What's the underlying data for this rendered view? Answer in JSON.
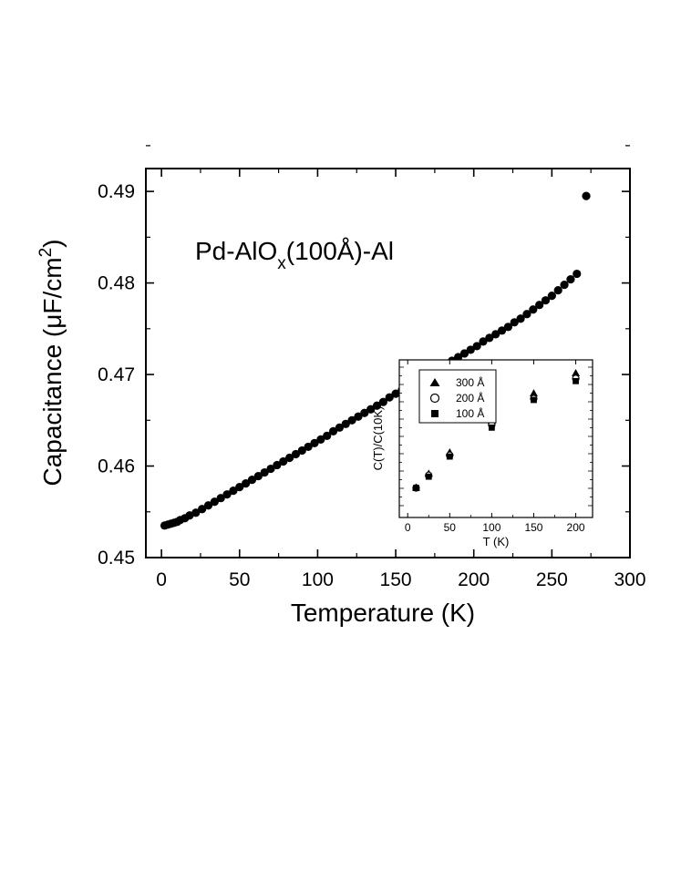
{
  "chart_data": [
    {
      "type": "scatter",
      "annotation": {
        "prefix": "Pd-AlO",
        "subscript": "x",
        "suffix": "(100Å)-Al"
      },
      "xlabel": "Temperature (K)",
      "ylabel": {
        "text": "Capacitance (μF/cm",
        "sup": "2",
        "close": ")"
      },
      "xlim": [
        -10,
        300
      ],
      "ylim": [
        0.45,
        0.4925
      ],
      "xticks": [
        0,
        50,
        100,
        150,
        200,
        250,
        300
      ],
      "xtick_labels": [
        "0",
        "50",
        "100",
        "150",
        "200",
        "250",
        "300"
      ],
      "yticks": [
        0.45,
        0.46,
        0.47,
        0.48,
        0.49
      ],
      "ytick_labels": [
        "0.45",
        "0.46",
        "0.47",
        "0.48",
        "0.49"
      ],
      "grid": false,
      "marker": "filled-circle",
      "color": "#000000",
      "series": [
        {
          "x": [
            2,
            4,
            6,
            8,
            10,
            12,
            15,
            18,
            22,
            26,
            30,
            34,
            38,
            42,
            46,
            50,
            54,
            58,
            62,
            66,
            70,
            74,
            78,
            82,
            86,
            90,
            94,
            98,
            102,
            106,
            110,
            114,
            118,
            122,
            126,
            130,
            134,
            138,
            142,
            146,
            150,
            154,
            158,
            162,
            166,
            170,
            174,
            178,
            182,
            186,
            190,
            194,
            198,
            202,
            206,
            210,
            214,
            218,
            222,
            226,
            230,
            234,
            238,
            242,
            246,
            250,
            254,
            258,
            262,
            266,
            272
          ],
          "y": [
            0.4535,
            0.4536,
            0.4537,
            0.4538,
            0.4539,
            0.4541,
            0.4543,
            0.4546,
            0.4549,
            0.4553,
            0.4557,
            0.4561,
            0.4565,
            0.4569,
            0.4573,
            0.4577,
            0.4581,
            0.4585,
            0.4589,
            0.4593,
            0.4597,
            0.4601,
            0.4605,
            0.4609,
            0.4613,
            0.4617,
            0.4621,
            0.4625,
            0.4629,
            0.4633,
            0.4638,
            0.4642,
            0.4646,
            0.465,
            0.4654,
            0.4658,
            0.4662,
            0.4666,
            0.467,
            0.4675,
            0.4679,
            0.4683,
            0.4687,
            0.4691,
            0.4695,
            0.4699,
            0.4703,
            0.4707,
            0.4711,
            0.4715,
            0.4719,
            0.4723,
            0.4727,
            0.4731,
            0.4736,
            0.474,
            0.4744,
            0.4748,
            0.4752,
            0.4757,
            0.4761,
            0.4766,
            0.4771,
            0.4776,
            0.4781,
            0.4786,
            0.4792,
            0.4798,
            0.4804,
            0.481,
            0.4895
          ]
        }
      ]
    },
    {
      "type": "scatter",
      "inset": true,
      "xlabel": "T (K)",
      "ylabel": "C(T)/C(10K)",
      "xlim": [
        -10,
        220
      ],
      "ylim": [
        0.0,
        1.0
      ],
      "xticks": [
        0,
        50,
        100,
        150,
        200
      ],
      "xtick_labels": [
        "0",
        "50",
        "100",
        "150",
        "200"
      ],
      "y_tick_labels_shown": false,
      "legend_position": "top-left",
      "series": [
        {
          "name": "300 Å",
          "marker": "filled-triangle",
          "x": [
            10,
            25,
            50,
            100,
            150,
            200
          ],
          "y": [
            0.09,
            0.2,
            0.37,
            0.62,
            0.84,
            1.0
          ]
        },
        {
          "name": "200 Å",
          "marker": "open-circle",
          "x": [
            10,
            25,
            50,
            100,
            150,
            200
          ],
          "y": [
            0.09,
            0.19,
            0.35,
            0.59,
            0.8,
            0.96
          ]
        },
        {
          "name": "100 Å",
          "marker": "filled-square",
          "x": [
            10,
            25,
            50,
            100,
            150,
            200
          ],
          "y": [
            0.09,
            0.18,
            0.34,
            0.57,
            0.79,
            0.94
          ]
        }
      ]
    }
  ]
}
